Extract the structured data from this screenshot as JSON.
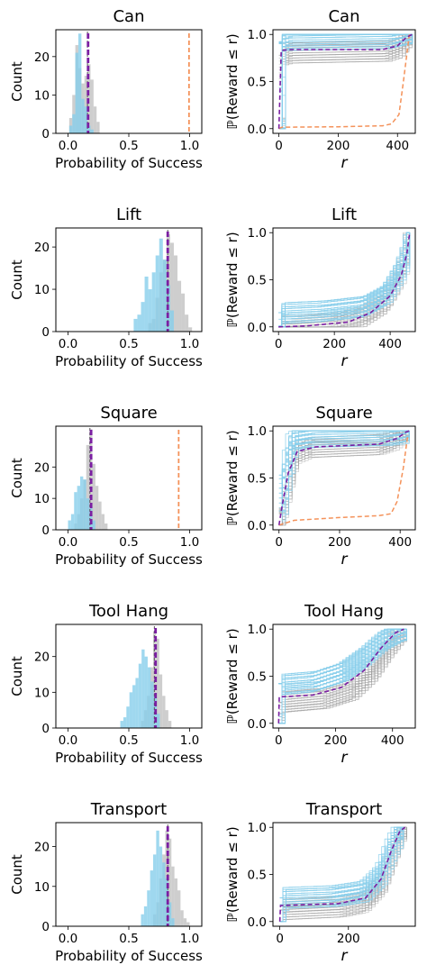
{
  "colors": {
    "blue": "#87ceeb",
    "gray": "#bdbdbd",
    "purple": "#7b1fa2",
    "orange": "#f4925a"
  },
  "left_labels": {
    "xlabel": "Probability of Success",
    "ylabel": "Count"
  },
  "right_labels": {
    "xlabel": "r",
    "ylabel": "ℙ(Reward ≤ r)"
  },
  "chart_data": [
    {
      "type": "bar",
      "title": "Can",
      "xlim": [
        -0.1,
        1.1
      ],
      "ylim": [
        0,
        27
      ],
      "xticks": [
        0.0,
        0.5,
        1.0
      ],
      "xtick_labels": [
        "0.0",
        "0.5",
        "1.0"
      ],
      "yticks": [
        0,
        10,
        20
      ],
      "ytick_labels": [
        "0",
        "10",
        "20"
      ],
      "bin_width": 0.025,
      "gray_bins": [
        [
          0.01,
          4
        ],
        [
          0.035,
          10
        ],
        [
          0.06,
          23
        ],
        [
          0.085,
          17
        ],
        [
          0.11,
          13
        ],
        [
          0.135,
          15
        ],
        [
          0.16,
          18
        ],
        [
          0.185,
          14
        ],
        [
          0.21,
          7
        ],
        [
          0.235,
          3
        ]
      ],
      "blue_bins": [
        [
          0.01,
          2
        ],
        [
          0.035,
          5
        ],
        [
          0.06,
          21
        ],
        [
          0.085,
          26
        ],
        [
          0.11,
          9
        ],
        [
          0.135,
          7
        ],
        [
          0.16,
          2
        ],
        [
          0.185,
          1
        ]
      ],
      "purple_line": 0.165,
      "gray_line": 0.16,
      "orange_line": 0.995
    },
    {
      "type": "line",
      "title": "Can",
      "xlim": [
        -20,
        460
      ],
      "ylim": [
        -0.05,
        1.05
      ],
      "xticks": [
        0,
        200,
        400
      ],
      "xtick_labels": [
        "0",
        "200",
        "400"
      ],
      "yticks": [
        0.0,
        0.5,
        1.0
      ],
      "ytick_labels": [
        "0.0",
        "0.5",
        "1.0"
      ],
      "gray_lines": [
        [
          0,
          0
        ],
        [
          8,
          0.78
        ],
        [
          30,
          0.8
        ],
        [
          360,
          0.82
        ],
        [
          400,
          0.86
        ],
        [
          430,
          0.98
        ],
        [
          450,
          1.0
        ]
      ],
      "blue_lines": [
        [
          0,
          0
        ],
        [
          3,
          0.9
        ],
        [
          20,
          0.93
        ],
        [
          380,
          0.95
        ],
        [
          420,
          0.98
        ],
        [
          450,
          1.0
        ]
      ],
      "purple_curve": [
        [
          0,
          0
        ],
        [
          8,
          0.83
        ],
        [
          40,
          0.84
        ],
        [
          350,
          0.84
        ],
        [
          400,
          0.88
        ],
        [
          430,
          0.97
        ],
        [
          450,
          1.0
        ]
      ],
      "orange_curve": [
        [
          0,
          0
        ],
        [
          10,
          0.015
        ],
        [
          200,
          0.02
        ],
        [
          350,
          0.03
        ],
        [
          380,
          0.05
        ],
        [
          405,
          0.15
        ],
        [
          420,
          0.5
        ],
        [
          440,
          1.0
        ]
      ]
    },
    {
      "type": "bar",
      "title": "Lift",
      "xlim": [
        -0.1,
        1.1
      ],
      "ylim": [
        0,
        24.5
      ],
      "xticks": [
        0.0,
        0.5,
        1.0
      ],
      "xtick_labels": [
        "0.0",
        "0.5",
        "1.0"
      ],
      "yticks": [
        0,
        10,
        20
      ],
      "ytick_labels": [
        "0",
        "10",
        "20"
      ],
      "bin_width": 0.03,
      "gray_bins": [
        [
          0.66,
          2
        ],
        [
          0.69,
          3
        ],
        [
          0.72,
          8
        ],
        [
          0.75,
          14
        ],
        [
          0.78,
          17
        ],
        [
          0.81,
          23
        ],
        [
          0.84,
          21
        ],
        [
          0.87,
          18
        ],
        [
          0.9,
          12
        ],
        [
          0.93,
          9
        ],
        [
          0.96,
          4
        ],
        [
          0.99,
          1
        ]
      ],
      "blue_bins": [
        [
          0.54,
          3
        ],
        [
          0.57,
          4
        ],
        [
          0.6,
          7
        ],
        [
          0.63,
          13
        ],
        [
          0.66,
          10
        ],
        [
          0.69,
          14
        ],
        [
          0.72,
          18
        ],
        [
          0.75,
          22
        ],
        [
          0.78,
          17
        ],
        [
          0.81,
          11
        ],
        [
          0.84,
          5
        ]
      ],
      "purple_line": 0.82,
      "gray_line": 0.82,
      "orange_line": null
    },
    {
      "type": "line",
      "title": "Lift",
      "xlim": [
        -20,
        490
      ],
      "ylim": [
        -0.05,
        1.05
      ],
      "xticks": [
        0,
        200,
        400
      ],
      "xtick_labels": [
        "0",
        "200",
        "400"
      ],
      "yticks": [
        0.0,
        0.5,
        1.0
      ],
      "ytick_labels": [
        "0.0",
        "0.5",
        "1.0"
      ],
      "gray_lines": [
        [
          0,
          0
        ],
        [
          50,
          0.0
        ],
        [
          200,
          0.03
        ],
        [
          300,
          0.1
        ],
        [
          380,
          0.25
        ],
        [
          430,
          0.5
        ],
        [
          460,
          0.8
        ],
        [
          470,
          1.0
        ]
      ],
      "blue_lines": [
        [
          0,
          0
        ],
        [
          5,
          0.15
        ],
        [
          150,
          0.17
        ],
        [
          300,
          0.22
        ],
        [
          380,
          0.35
        ],
        [
          430,
          0.6
        ],
        [
          460,
          0.85
        ],
        [
          470,
          1.0
        ]
      ],
      "purple_curve": [
        [
          0,
          0
        ],
        [
          100,
          0.01
        ],
        [
          250,
          0.05
        ],
        [
          330,
          0.15
        ],
        [
          400,
          0.33
        ],
        [
          440,
          0.55
        ],
        [
          460,
          0.78
        ],
        [
          470,
          1.0
        ]
      ],
      "orange_curve": null
    },
    {
      "type": "bar",
      "title": "Square",
      "xlim": [
        -0.1,
        1.1
      ],
      "ylim": [
        0,
        33
      ],
      "xticks": [
        0.0,
        0.5,
        1.0
      ],
      "xtick_labels": [
        "0.0",
        "0.5",
        "1.0"
      ],
      "yticks": [
        0,
        10,
        20
      ],
      "ytick_labels": [
        "0",
        "10",
        "20"
      ],
      "bin_width": 0.025,
      "gray_bins": [
        [
          0.05,
          2
        ],
        [
          0.075,
          5
        ],
        [
          0.1,
          10
        ],
        [
          0.125,
          16
        ],
        [
          0.15,
          27
        ],
        [
          0.175,
          32
        ],
        [
          0.2,
          21
        ],
        [
          0.225,
          14
        ],
        [
          0.25,
          9
        ],
        [
          0.275,
          5
        ],
        [
          0.3,
          2
        ]
      ],
      "blue_bins": [
        [
          0.0,
          3
        ],
        [
          0.025,
          5
        ],
        [
          0.05,
          12
        ],
        [
          0.075,
          14
        ],
        [
          0.1,
          17
        ],
        [
          0.125,
          16
        ],
        [
          0.15,
          10
        ],
        [
          0.175,
          7
        ],
        [
          0.2,
          3
        ]
      ],
      "purple_line": 0.19,
      "gray_line": 0.18,
      "orange_line": 0.91
    },
    {
      "type": "line",
      "title": "Square",
      "xlim": [
        -20,
        450
      ],
      "ylim": [
        -0.05,
        1.05
      ],
      "xticks": [
        0,
        200,
        400
      ],
      "xtick_labels": [
        "0",
        "200",
        "400"
      ],
      "yticks": [
        0.0,
        0.5,
        1.0
      ],
      "ytick_labels": [
        "0.0",
        "0.5",
        "1.0"
      ],
      "gray_lines": [
        [
          0,
          0
        ],
        [
          20,
          0.3
        ],
        [
          50,
          0.75
        ],
        [
          100,
          0.82
        ],
        [
          330,
          0.85
        ],
        [
          380,
          0.9
        ],
        [
          410,
          0.98
        ],
        [
          430,
          1.0
        ]
      ],
      "blue_lines": [
        [
          0,
          0.15
        ],
        [
          15,
          0.5
        ],
        [
          40,
          0.9
        ],
        [
          100,
          0.93
        ],
        [
          350,
          0.95
        ],
        [
          400,
          0.97
        ],
        [
          430,
          1.0
        ]
      ],
      "purple_curve": [
        [
          0,
          0
        ],
        [
          10,
          0.2
        ],
        [
          30,
          0.55
        ],
        [
          60,
          0.78
        ],
        [
          120,
          0.83
        ],
        [
          330,
          0.86
        ],
        [
          390,
          0.92
        ],
        [
          420,
          0.99
        ],
        [
          430,
          1.0
        ]
      ],
      "orange_curve": [
        [
          0,
          0
        ],
        [
          20,
          0.02
        ],
        [
          50,
          0.05
        ],
        [
          200,
          0.08
        ],
        [
          330,
          0.1
        ],
        [
          370,
          0.12
        ],
        [
          390,
          0.25
        ],
        [
          410,
          0.6
        ],
        [
          425,
          0.95
        ]
      ]
    },
    {
      "type": "bar",
      "title": "Tool Hang",
      "xlim": [
        -0.1,
        1.1
      ],
      "ylim": [
        0,
        29
      ],
      "xticks": [
        0.0,
        0.5,
        1.0
      ],
      "xtick_labels": [
        "0.0",
        "0.5",
        "1.0"
      ],
      "yticks": [
        0,
        10,
        20
      ],
      "ytick_labels": [
        "0",
        "10",
        "20"
      ],
      "bin_width": 0.025,
      "gray_bins": [
        [
          0.6,
          2
        ],
        [
          0.625,
          5
        ],
        [
          0.65,
          9
        ],
        [
          0.675,
          17
        ],
        [
          0.7,
          27
        ],
        [
          0.725,
          25
        ],
        [
          0.75,
          15
        ],
        [
          0.775,
          9
        ],
        [
          0.8,
          5
        ],
        [
          0.825,
          2
        ]
      ],
      "blue_bins": [
        [
          0.43,
          2
        ],
        [
          0.455,
          3
        ],
        [
          0.48,
          6
        ],
        [
          0.505,
          10
        ],
        [
          0.53,
          12
        ],
        [
          0.555,
          14
        ],
        [
          0.58,
          18
        ],
        [
          0.605,
          22
        ],
        [
          0.63,
          20
        ],
        [
          0.655,
          17
        ],
        [
          0.68,
          13
        ],
        [
          0.705,
          9
        ],
        [
          0.73,
          4
        ]
      ],
      "purple_line": 0.72,
      "gray_line": 0.71,
      "orange_line": null
    },
    {
      "type": "line",
      "title": "Tool Hang",
      "xlim": [
        -20,
        480
      ],
      "ylim": [
        -0.05,
        1.05
      ],
      "xticks": [
        0,
        200,
        400
      ],
      "xtick_labels": [
        "0",
        "200",
        "400"
      ],
      "yticks": [
        0.0,
        0.5,
        1.0
      ],
      "ytick_labels": [
        "0.0",
        "0.5",
        "1.0"
      ],
      "gray_lines": [
        [
          0,
          0
        ],
        [
          2,
          0.22
        ],
        [
          150,
          0.26
        ],
        [
          250,
          0.35
        ],
        [
          320,
          0.55
        ],
        [
          380,
          0.82
        ],
        [
          420,
          0.97
        ],
        [
          450,
          1.0
        ]
      ],
      "blue_lines": [
        [
          0,
          0
        ],
        [
          2,
          0.42
        ],
        [
          120,
          0.45
        ],
        [
          220,
          0.55
        ],
        [
          300,
          0.72
        ],
        [
          360,
          0.88
        ],
        [
          420,
          0.98
        ],
        [
          450,
          1.0
        ]
      ],
      "purple_curve": [
        [
          0,
          0
        ],
        [
          2,
          0.28
        ],
        [
          120,
          0.3
        ],
        [
          220,
          0.38
        ],
        [
          300,
          0.56
        ],
        [
          360,
          0.8
        ],
        [
          410,
          0.96
        ],
        [
          440,
          1.0
        ]
      ],
      "orange_curve": null
    },
    {
      "type": "bar",
      "title": "Transport",
      "xlim": [
        -0.1,
        1.1
      ],
      "ylim": [
        0,
        26
      ],
      "xticks": [
        0.0,
        0.5,
        1.0
      ],
      "xtick_labels": [
        "0.0",
        "0.5",
        "1.0"
      ],
      "yticks": [
        0,
        10,
        20
      ],
      "ytick_labels": [
        "0",
        "10",
        "20"
      ],
      "bin_width": 0.025,
      "gray_bins": [
        [
          0.7,
          3
        ],
        [
          0.725,
          6
        ],
        [
          0.75,
          12
        ],
        [
          0.775,
          18
        ],
        [
          0.8,
          24
        ],
        [
          0.825,
          22
        ],
        [
          0.85,
          15
        ],
        [
          0.875,
          12
        ],
        [
          0.9,
          9
        ],
        [
          0.925,
          4
        ],
        [
          0.95,
          2
        ],
        [
          0.975,
          1
        ]
      ],
      "blue_bins": [
        [
          0.6,
          3
        ],
        [
          0.625,
          5
        ],
        [
          0.65,
          9
        ],
        [
          0.675,
          14
        ],
        [
          0.7,
          18
        ],
        [
          0.725,
          24
        ],
        [
          0.75,
          20
        ],
        [
          0.775,
          16
        ],
        [
          0.8,
          12
        ],
        [
          0.825,
          6
        ],
        [
          0.85,
          2
        ]
      ],
      "purple_line": 0.82,
      "gray_line": 0.82,
      "orange_line": null
    },
    {
      "type": "line",
      "title": "Transport",
      "xlim": [
        -20,
        395
      ],
      "ylim": [
        -0.05,
        1.05
      ],
      "xticks": [
        0,
        200
      ],
      "xtick_labels": [
        "0",
        "200"
      ],
      "yticks": [
        0.0,
        0.5,
        1.0
      ],
      "ytick_labels": [
        "0.0",
        "0.5",
        "1.0"
      ],
      "gray_lines": [
        [
          0,
          0
        ],
        [
          2,
          0.12
        ],
        [
          180,
          0.15
        ],
        [
          250,
          0.2
        ],
        [
          300,
          0.4
        ],
        [
          330,
          0.7
        ],
        [
          355,
          0.95
        ],
        [
          370,
          1.0
        ]
      ],
      "blue_lines": [
        [
          0,
          0
        ],
        [
          2,
          0.25
        ],
        [
          150,
          0.27
        ],
        [
          240,
          0.32
        ],
        [
          290,
          0.5
        ],
        [
          320,
          0.78
        ],
        [
          345,
          0.96
        ],
        [
          360,
          1.0
        ]
      ],
      "purple_curve": [
        [
          0,
          0
        ],
        [
          2,
          0.17
        ],
        [
          170,
          0.19
        ],
        [
          250,
          0.25
        ],
        [
          295,
          0.45
        ],
        [
          325,
          0.75
        ],
        [
          350,
          0.96
        ],
        [
          365,
          1.0
        ]
      ],
      "orange_curve": null
    }
  ]
}
